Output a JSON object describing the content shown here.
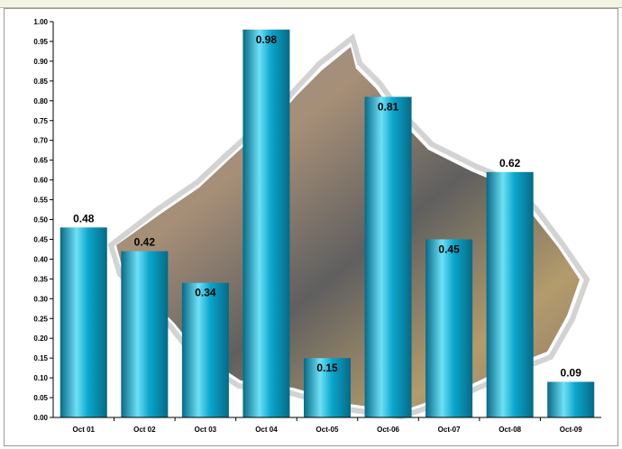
{
  "chart_data": {
    "type": "bar",
    "categories": [
      "Oct 01",
      "Oct 02",
      "Oct 03",
      "Oct 04",
      "Oct-05",
      "Oct-06",
      "Oct-07",
      "Oct-08",
      "Oct-09"
    ],
    "values": [
      0.48,
      0.42,
      0.34,
      0.98,
      0.15,
      0.81,
      0.45,
      0.62,
      0.09
    ],
    "data_labels": [
      "0.48",
      "0.42",
      "0.34",
      "0.98",
      "0.15",
      "0.81",
      "0.45",
      "0.62",
      "0.09"
    ],
    "yticks": [
      "0.00",
      "0.05",
      "0.10",
      "0.15",
      "0.20",
      "0.25",
      "0.30",
      "0.35",
      "0.40",
      "0.45",
      "0.50",
      "0.55",
      "0.60",
      "0.65",
      "0.70",
      "0.75",
      "0.80",
      "0.85",
      "0.90",
      "0.95",
      "1.00"
    ],
    "ylim": [
      0,
      1.0
    ],
    "grid": false,
    "legend": false,
    "bar_color": "#0aa6cc",
    "bar_dark": "#066a86",
    "bar_light": "#6fe0f6"
  }
}
